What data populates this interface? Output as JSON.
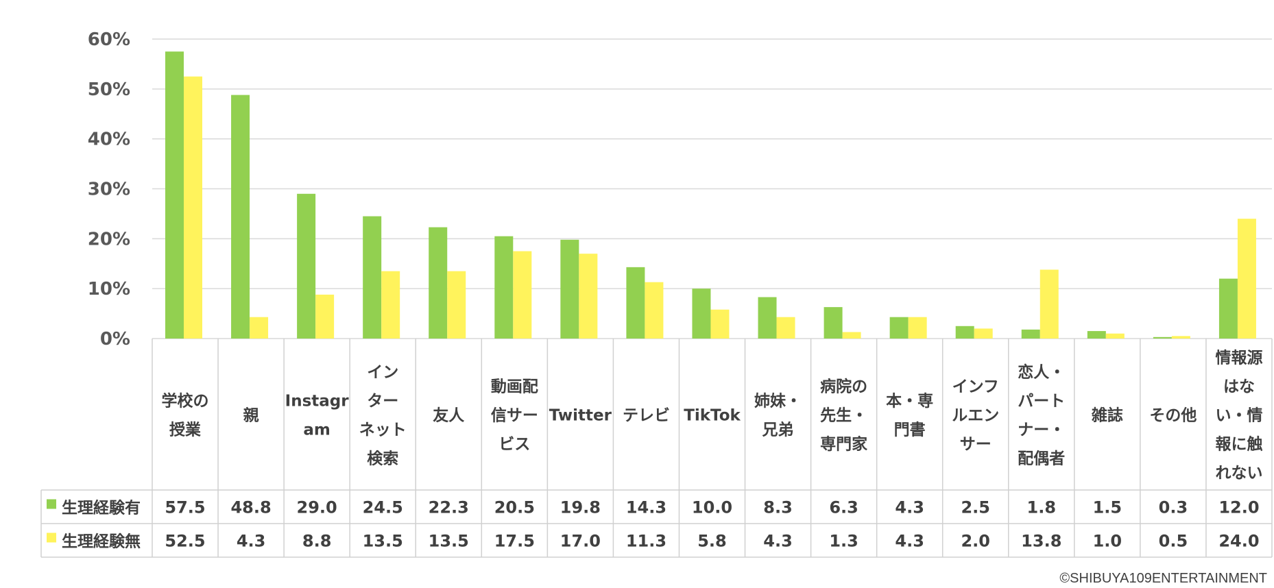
{
  "chart_data": {
    "type": "bar",
    "categories": [
      [
        "学校の",
        "授業"
      ],
      [
        "親"
      ],
      [
        "Instagr",
        "am"
      ],
      [
        "イン",
        "ター",
        "ネット",
        "検索"
      ],
      [
        "友人"
      ],
      [
        "動画配",
        "信サー",
        "ビス"
      ],
      [
        "Twitter"
      ],
      [
        "テレビ"
      ],
      [
        "TikTok"
      ],
      [
        "姉妹・",
        "兄弟"
      ],
      [
        "病院の",
        "先生・",
        "専門家"
      ],
      [
        "本・専",
        "門書"
      ],
      [
        "インフ",
        "ルエン",
        "サー"
      ],
      [
        "恋人・",
        "パート",
        "ナー・",
        "配偶者"
      ],
      [
        "雑誌"
      ],
      [
        "その他"
      ],
      [
        "情報源",
        "はな",
        "い・情",
        "報に触",
        "れない"
      ]
    ],
    "series": [
      {
        "name": "生理経験有",
        "color": "#92D050",
        "values": [
          57.5,
          48.8,
          29.0,
          24.5,
          22.3,
          20.5,
          19.8,
          14.3,
          10.0,
          8.3,
          6.3,
          4.3,
          2.5,
          1.8,
          1.5,
          0.3,
          12.0
        ],
        "labels": [
          "57.5",
          "48.8",
          "29.0",
          "24.5",
          "22.3",
          "20.5",
          "19.8",
          "14.3",
          "10.0",
          "8.3",
          "6.3",
          "4.3",
          "2.5",
          "1.8",
          "1.5",
          "0.3",
          "12.0"
        ]
      },
      {
        "name": "生理経験無",
        "color": "#FFF35C",
        "values": [
          52.5,
          4.3,
          8.8,
          13.5,
          13.5,
          17.5,
          17.0,
          11.3,
          5.8,
          4.3,
          1.3,
          4.3,
          2.0,
          13.8,
          1.0,
          0.5,
          24.0
        ],
        "labels": [
          "52.5",
          "4.3",
          "8.8",
          "13.5",
          "13.5",
          "17.5",
          "17.0",
          "11.3",
          "5.8",
          "4.3",
          "1.3",
          "4.3",
          "2.0",
          "13.8",
          "1.0",
          "0.5",
          "24.0"
        ]
      }
    ],
    "yticks": [
      "0%",
      "10%",
      "20%",
      "30%",
      "40%",
      "50%",
      "60%"
    ],
    "ylim": [
      0,
      60
    ],
    "grid": true,
    "legend": "data-table"
  },
  "copyright": "©SHIBUYA109ENTERTAINMENT"
}
